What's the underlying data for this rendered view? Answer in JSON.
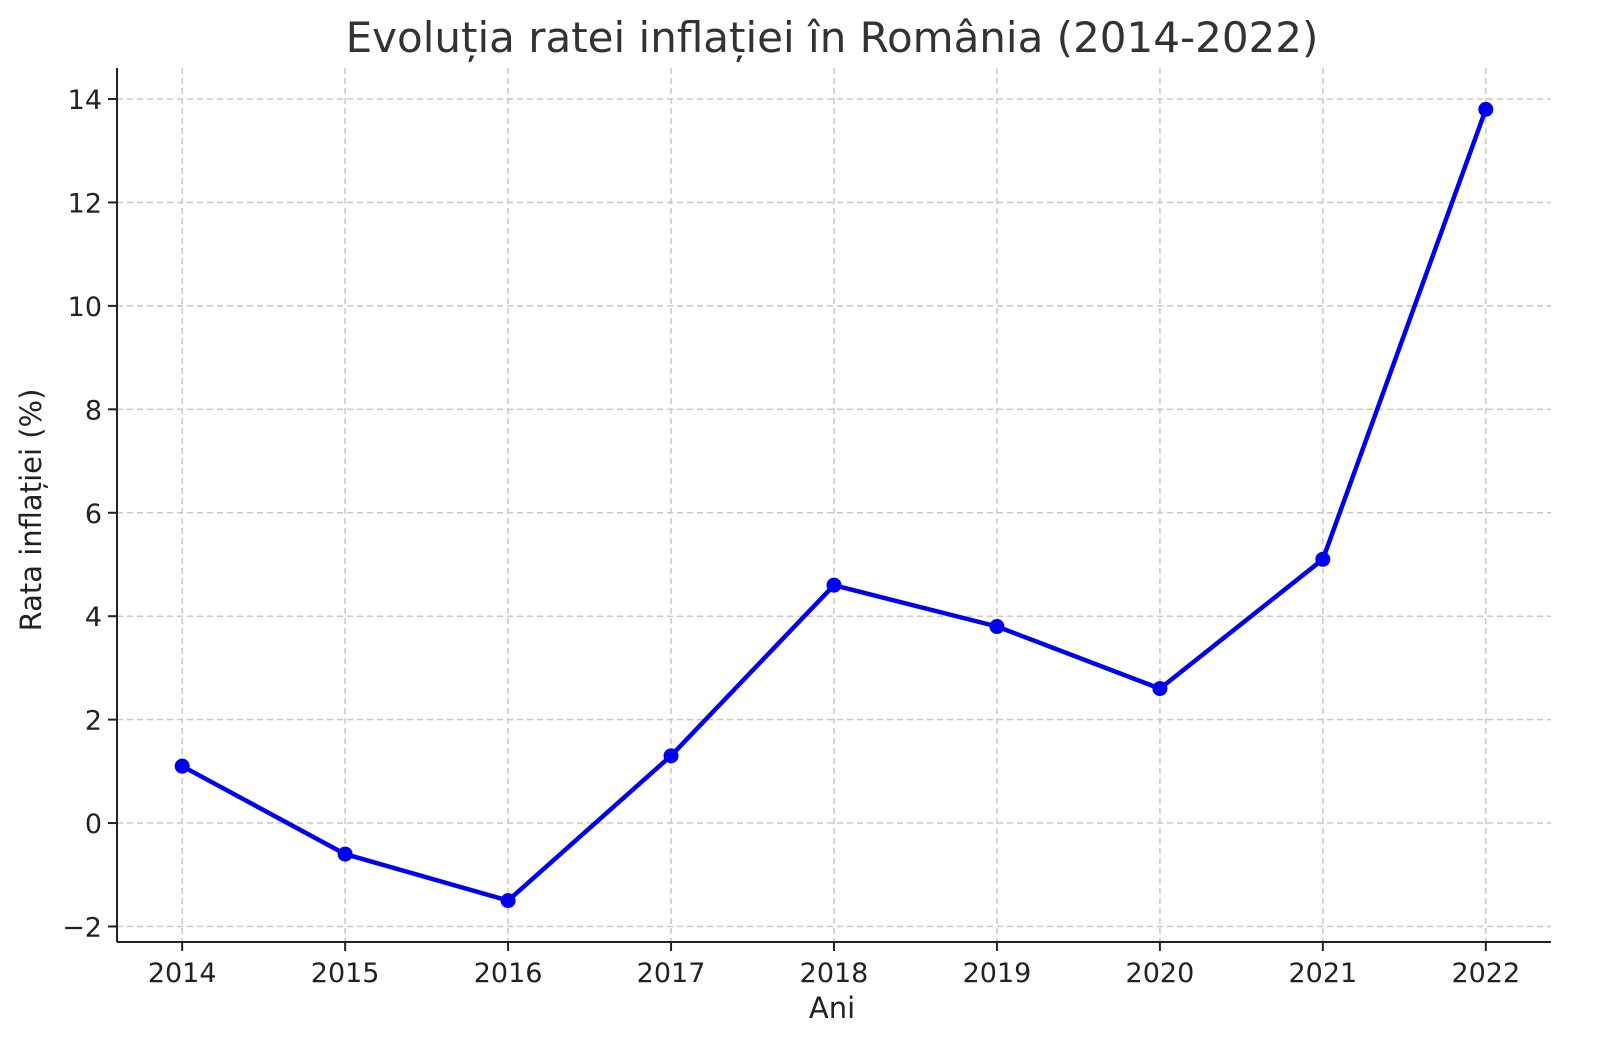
{
  "chart_data": {
    "type": "line",
    "title": "Evoluția ratei inflației în România (2014-2022)",
    "xlabel": "Ani",
    "ylabel": "Rata inflației (%)",
    "x": [
      2014,
      2015,
      2016,
      2017,
      2018,
      2019,
      2020,
      2021,
      2022
    ],
    "x_tick_labels": [
      "2014",
      "2015",
      "2016",
      "2017",
      "2018",
      "2019",
      "2020",
      "2021",
      "2022"
    ],
    "y_ticks": [
      -2,
      0,
      2,
      4,
      6,
      8,
      10,
      12,
      14
    ],
    "y_tick_labels": [
      "−2",
      "0",
      "2",
      "4",
      "6",
      "8",
      "10",
      "12",
      "14"
    ],
    "xlim": [
      2013.6,
      2022.4
    ],
    "ylim": [
      -2.3,
      14.6
    ],
    "grid": true,
    "series": [
      {
        "values": [
          1.1,
          -0.6,
          -1.5,
          1.3,
          4.6,
          3.8,
          2.6,
          5.1,
          13.8
        ],
        "color": "#0000ee",
        "marker": "circle"
      }
    ]
  }
}
